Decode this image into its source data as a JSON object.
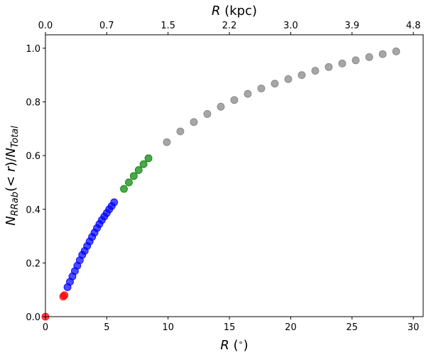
{
  "chart_data": {
    "type": "scatter",
    "xlabel": "R (°)",
    "ylabel": "N_RRab(<r)/N_Total",
    "top_xlabel": "R (kpc)",
    "xlim": [
      0,
      30.8
    ],
    "ylim": [
      0,
      1.05
    ],
    "x_ticks": [
      0,
      5,
      10,
      15,
      20,
      25,
      30
    ],
    "y_ticks": [
      0.0,
      0.2,
      0.4,
      0.6,
      0.8,
      1.0
    ],
    "y_tick_labels": [
      "0.0",
      "0.2",
      "0.4",
      "0.6",
      "0.8",
      "1.0"
    ],
    "top_ticks": [
      {
        "x": 0.0,
        "label": "0.0"
      },
      {
        "x": 5.0,
        "label": "0.7"
      },
      {
        "x": 10.0,
        "label": "1.5"
      },
      {
        "x": 15.0,
        "label": "2.2"
      },
      {
        "x": 20.0,
        "label": "3.0"
      },
      {
        "x": 25.0,
        "label": "3.9"
      },
      {
        "x": 30.0,
        "label": "4.8"
      }
    ],
    "series": [
      {
        "color": "#ff0000",
        "points": [
          [
            0.0,
            0.0
          ],
          [
            1.45,
            0.075
          ],
          [
            1.55,
            0.08
          ]
        ]
      },
      {
        "color": "#0000ff",
        "points": [
          [
            1.8,
            0.11
          ],
          [
            2.0,
            0.13
          ],
          [
            2.2,
            0.15
          ],
          [
            2.4,
            0.17
          ],
          [
            2.6,
            0.19
          ],
          [
            2.8,
            0.21
          ],
          [
            3.0,
            0.23
          ],
          [
            3.2,
            0.245
          ],
          [
            3.4,
            0.263
          ],
          [
            3.6,
            0.28
          ],
          [
            3.8,
            0.297
          ],
          [
            4.0,
            0.313
          ],
          [
            4.2,
            0.33
          ],
          [
            4.4,
            0.345
          ],
          [
            4.6,
            0.36
          ],
          [
            4.8,
            0.373
          ],
          [
            5.0,
            0.386
          ],
          [
            5.2,
            0.4
          ],
          [
            5.4,
            0.412
          ],
          [
            5.6,
            0.426
          ]
        ]
      },
      {
        "color": "#008000",
        "points": [
          [
            6.4,
            0.476
          ],
          [
            6.8,
            0.5
          ],
          [
            7.2,
            0.524
          ],
          [
            7.6,
            0.546
          ],
          [
            8.0,
            0.568
          ],
          [
            8.4,
            0.59
          ]
        ]
      },
      {
        "color": "#808080",
        "points": [
          [
            9.9,
            0.65
          ],
          [
            11.0,
            0.69
          ],
          [
            12.1,
            0.725
          ],
          [
            13.2,
            0.755
          ],
          [
            14.3,
            0.782
          ],
          [
            15.4,
            0.807
          ],
          [
            16.5,
            0.83
          ],
          [
            17.6,
            0.85
          ],
          [
            18.7,
            0.868
          ],
          [
            19.8,
            0.885
          ],
          [
            20.9,
            0.9
          ],
          [
            22.0,
            0.916
          ],
          [
            23.1,
            0.93
          ],
          [
            24.2,
            0.943
          ],
          [
            25.3,
            0.955
          ],
          [
            26.4,
            0.967
          ],
          [
            27.5,
            0.978
          ],
          [
            28.6,
            0.988
          ]
        ]
      }
    ]
  }
}
